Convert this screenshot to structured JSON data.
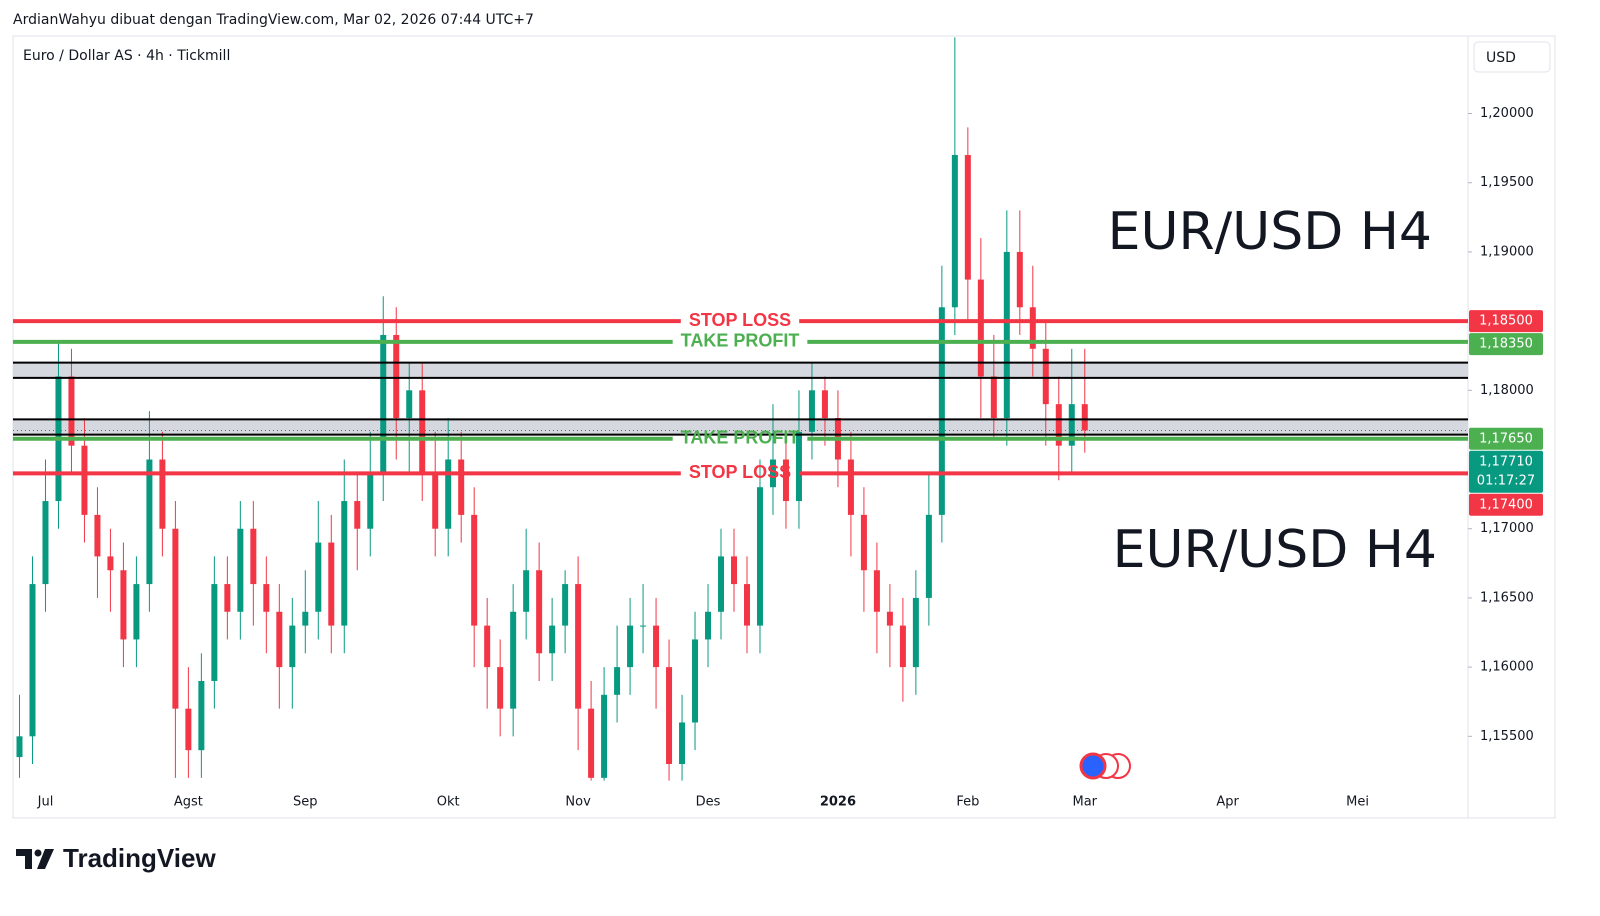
{
  "header": {
    "credit": "ArdianWahyu dibuat dengan TradingView.com, Mar 02, 2026 07:44 UTC+7"
  },
  "footer": {
    "brand": "TradingView"
  },
  "chart_data": {
    "type": "candlestick",
    "title": "Euro / Dollar AS · 4h · Tickmill",
    "currency": "USD",
    "annotations": [
      "EUR/USD H4",
      "EUR/USD H4"
    ],
    "up_color": "#089981",
    "down_color": "#f23645",
    "grid": false,
    "ylim": [
      1.1517,
      1.2056
    ],
    "yticks": [
      {
        "value": 1.155,
        "label": "1,15500"
      },
      {
        "value": 1.16,
        "label": "1,16000"
      },
      {
        "value": 1.165,
        "label": "1,16500"
      },
      {
        "value": 1.17,
        "label": "1,17000"
      },
      {
        "value": 1.18,
        "label": "1,18000"
      },
      {
        "value": 1.19,
        "label": "1,19000"
      },
      {
        "value": 1.195,
        "label": "1,19500"
      },
      {
        "value": 1.2,
        "label": "1,20000"
      }
    ],
    "categories": [
      null,
      null,
      "Jul",
      null,
      null,
      null,
      null,
      null,
      null,
      null,
      null,
      null,
      null,
      "Agst",
      null,
      null,
      null,
      null,
      null,
      null,
      null,
      null,
      "Sep",
      null,
      null,
      null,
      null,
      null,
      null,
      null,
      null,
      null,
      null,
      "Okt",
      null,
      null,
      null,
      null,
      null,
      null,
      null,
      null,
      null,
      "Nov",
      null,
      null,
      null,
      null,
      null,
      null,
      null,
      null,
      null,
      "Des",
      null,
      null,
      null,
      null,
      null,
      null,
      null,
      null,
      null,
      "2026",
      null,
      null,
      null,
      null,
      null,
      null,
      null,
      null,
      null,
      "Feb",
      null,
      null,
      null,
      null,
      null,
      null,
      null,
      null,
      "Mar",
      null,
      null,
      null,
      null,
      null,
      null,
      null,
      null,
      null,
      null,
      "Apr",
      null,
      null,
      null,
      null,
      null,
      null,
      null,
      null,
      null,
      "Mei",
      null,
      null,
      null,
      null,
      null,
      null,
      null,
      null
    ],
    "open": [
      1.1535,
      1.155,
      1.166,
      1.172,
      1.181,
      1.176,
      1.171,
      1.168,
      1.167,
      1.162,
      1.166,
      1.175,
      1.17,
      1.157,
      1.154,
      1.159,
      1.166,
      1.164,
      1.17,
      1.166,
      1.164,
      1.16,
      1.163,
      1.164,
      1.169,
      1.163,
      1.172,
      1.17,
      1.174,
      1.184,
      1.178,
      1.18,
      1.174,
      1.17,
      1.175,
      1.171,
      1.163,
      1.16,
      1.157,
      1.164,
      1.167,
      1.161,
      1.163,
      1.166,
      1.157,
      1.152,
      1.158,
      1.16,
      1.163,
      1.163,
      1.16,
      1.153,
      1.156,
      1.162,
      1.164,
      1.168,
      1.166,
      1.163,
      1.173,
      1.175,
      1.172,
      1.177,
      1.18,
      1.178,
      1.175,
      1.171,
      1.167,
      1.164,
      1.163,
      1.16,
      1.165,
      1.171,
      1.186,
      1.197,
      1.188,
      1.181,
      1.178,
      1.19,
      1.186,
      1.183,
      1.179,
      1.176,
      1.179,
      null,
      null,
      null,
      null,
      null,
      null,
      null,
      null,
      null,
      null,
      null,
      null,
      null,
      null,
      null,
      null,
      null,
      null,
      null,
      null,
      null,
      null,
      null,
      null,
      null,
      null,
      null,
      null,
      null
    ],
    "high": [
      1.158,
      1.168,
      1.175,
      1.1835,
      1.183,
      1.178,
      1.173,
      1.17,
      1.169,
      1.168,
      1.1785,
      1.177,
      1.172,
      1.16,
      1.161,
      1.168,
      1.168,
      1.172,
      1.172,
      1.168,
      1.166,
      1.165,
      1.167,
      1.172,
      1.171,
      1.175,
      1.174,
      1.177,
      1.1868,
      1.186,
      1.182,
      1.182,
      1.177,
      1.178,
      1.177,
      1.173,
      1.165,
      1.162,
      1.166,
      1.17,
      1.169,
      1.165,
      1.167,
      1.168,
      1.159,
      1.16,
      1.163,
      1.165,
      1.166,
      1.165,
      1.162,
      1.158,
      1.164,
      1.166,
      1.17,
      1.17,
      1.168,
      1.175,
      1.179,
      1.177,
      1.18,
      1.182,
      1.181,
      1.18,
      1.177,
      1.173,
      1.169,
      1.166,
      1.165,
      1.167,
      1.174,
      1.189,
      1.2055,
      1.199,
      1.191,
      1.184,
      1.193,
      1.193,
      1.189,
      1.185,
      1.181,
      1.183,
      1.183,
      null,
      null,
      null,
      null,
      null,
      null,
      null,
      null,
      null,
      null,
      null,
      null,
      null,
      null,
      null,
      null,
      null,
      null,
      null,
      null,
      null,
      null,
      null,
      null,
      null,
      null,
      null,
      null,
      null
    ],
    "low": [
      1.152,
      1.153,
      1.164,
      1.17,
      1.174,
      1.169,
      1.165,
      1.164,
      1.16,
      1.16,
      1.164,
      1.168,
      1.152,
      1.152,
      1.152,
      1.157,
      1.162,
      1.162,
      1.163,
      1.161,
      1.157,
      1.157,
      1.161,
      1.162,
      1.161,
      1.161,
      1.167,
      1.168,
      1.172,
      1.175,
      1.174,
      1.172,
      1.168,
      1.168,
      1.169,
      1.16,
      1.157,
      1.155,
      1.155,
      1.162,
      1.159,
      1.159,
      1.161,
      1.154,
      1.1518,
      1.1518,
      1.156,
      1.158,
      1.161,
      1.157,
      1.1518,
      1.1518,
      1.154,
      1.16,
      1.162,
      1.164,
      1.161,
      1.161,
      1.171,
      1.17,
      1.17,
      1.175,
      1.176,
      1.173,
      1.168,
      1.164,
      1.161,
      1.16,
      1.1575,
      1.158,
      1.163,
      1.169,
      1.184,
      1.185,
      1.178,
      1.1765,
      1.176,
      1.184,
      1.181,
      1.176,
      1.1735,
      1.174,
      1.1755,
      null,
      null,
      null,
      null,
      null,
      null,
      null,
      null,
      null,
      null,
      null,
      null,
      null,
      null,
      null,
      null,
      null,
      null,
      null,
      null,
      null,
      null,
      null,
      null,
      null,
      null,
      null,
      null,
      null
    ],
    "close": [
      1.155,
      1.166,
      1.172,
      1.181,
      1.176,
      1.171,
      1.168,
      1.167,
      1.162,
      1.166,
      1.175,
      1.17,
      1.157,
      1.154,
      1.159,
      1.166,
      1.164,
      1.17,
      1.166,
      1.164,
      1.16,
      1.163,
      1.164,
      1.169,
      1.163,
      1.172,
      1.17,
      1.174,
      1.184,
      1.178,
      1.18,
      1.174,
      1.17,
      1.175,
      1.171,
      1.163,
      1.16,
      1.157,
      1.164,
      1.167,
      1.161,
      1.163,
      1.166,
      1.157,
      1.152,
      1.158,
      1.16,
      1.163,
      1.163,
      1.16,
      1.153,
      1.156,
      1.162,
      1.164,
      1.168,
      1.166,
      1.163,
      1.173,
      1.175,
      1.172,
      1.177,
      1.18,
      1.178,
      1.175,
      1.171,
      1.167,
      1.164,
      1.163,
      1.16,
      1.165,
      1.171,
      1.186,
      1.197,
      1.188,
      1.181,
      1.178,
      1.19,
      1.186,
      1.183,
      1.179,
      1.176,
      1.179,
      1.1771,
      null,
      null,
      null,
      null,
      null,
      null,
      null,
      null,
      null,
      null,
      null,
      null,
      null,
      null,
      null,
      null,
      null,
      null,
      null,
      null,
      null,
      null,
      null,
      null,
      null,
      null,
      null,
      null,
      null
    ],
    "zones": [
      {
        "from": 1.1809,
        "to": 1.182
      },
      {
        "from": 1.1768,
        "to": 1.1779
      }
    ],
    "levels": [
      {
        "label": "STOP LOSS",
        "value": 1.185,
        "value_label": "1,18500",
        "color": "#f23645"
      },
      {
        "label": "TAKE PROFIT",
        "value": 1.1835,
        "value_label": "1,18350",
        "color": "#4caf50"
      },
      {
        "label": "TAKE PROFIT",
        "value": 1.1765,
        "value_label": "1,17650",
        "color": "#4caf50"
      },
      {
        "label": "STOP LOSS",
        "value": 1.174,
        "value_label": "1,17400",
        "color": "#f23645"
      }
    ],
    "last_price": {
      "value": 1.1771,
      "label": "1,17710",
      "countdown": "01:17:27",
      "color": "#089981"
    }
  }
}
